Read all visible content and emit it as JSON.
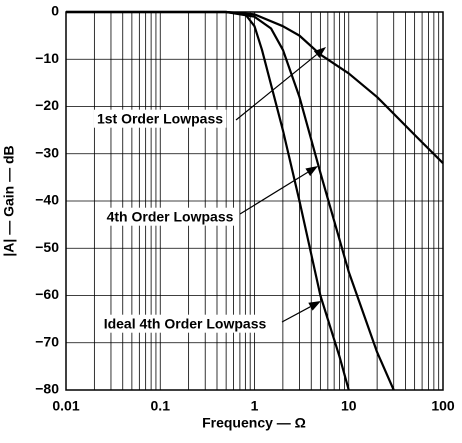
{
  "chart_data": {
    "type": "line",
    "x_label": "Frequency — Ω",
    "y_label": "|A| — Gain — dB",
    "xscale": "log",
    "grid": true,
    "xlim": [
      0.01,
      100
    ],
    "ylim": [
      -80,
      0
    ],
    "xticks": [
      0.01,
      0.1,
      1,
      10,
      100
    ],
    "xminorticks": [
      0.02,
      0.03,
      0.04,
      0.05,
      0.06,
      0.07,
      0.08,
      0.09,
      0.2,
      0.3,
      0.4,
      0.5,
      0.6,
      0.7,
      0.8,
      0.9,
      2,
      3,
      4,
      5,
      6,
      7,
      8,
      9,
      20,
      30,
      40,
      50,
      60,
      70,
      80,
      90
    ],
    "yticks": [
      0,
      {
        "value": -10,
        "label": "−10"
      },
      {
        "value": -20,
        "label": "−20"
      },
      {
        "value": -30,
        "label": "−30"
      },
      {
        "value": -40,
        "label": "−40"
      },
      {
        "value": -50,
        "label": "−50"
      },
      {
        "value": -60,
        "label": "−60"
      },
      {
        "value": -70,
        "label": "−70"
      },
      {
        "value": -80,
        "label": "−80"
      }
    ],
    "series": [
      {
        "name": "1st Order Lowpass",
        "color": "#000000",
        "x": [
          0.01,
          0.1,
          0.5,
          1,
          2,
          3,
          5,
          10,
          20,
          50,
          100
        ],
        "values": [
          0,
          0,
          0,
          -0.5,
          -3,
          -5,
          -9,
          -13,
          -18,
          -26,
          -32
        ]
      },
      {
        "name": "4th Order Lowpass",
        "color": "#000000",
        "x": [
          0.01,
          0.1,
          0.5,
          1,
          1.5,
          2,
          3,
          5,
          10,
          20,
          30
        ],
        "values": [
          0,
          0,
          0,
          -1,
          -3.5,
          -8,
          -18,
          -34,
          -55,
          -72,
          -80
        ]
      },
      {
        "name": "Ideal 4th Order Lowpass",
        "color": "#000000",
        "x": [
          0.01,
          0.1,
          0.5,
          0.8,
          1,
          1.2,
          2,
          3,
          5,
          8,
          10
        ],
        "values": [
          0,
          0,
          0,
          -0.5,
          -3,
          -8,
          -25,
          -40,
          -60,
          -73,
          -80
        ]
      }
    ]
  }
}
